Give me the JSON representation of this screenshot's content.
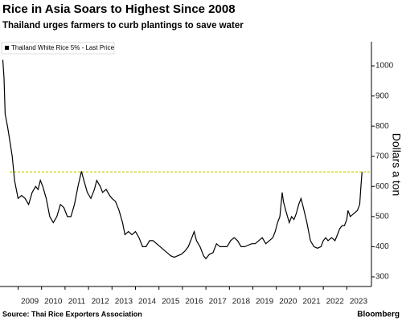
{
  "chart_data": {
    "type": "line",
    "title": "Rice in Asia Soars to Highest Since 2008",
    "subtitle": "Thailand urges farmers to curb plantings to save water",
    "y_label": "Dollars a ton",
    "source": "Source: Thai Rice Exporters Association",
    "brand": "Bloomberg",
    "legend_position": "upper left",
    "grid": false,
    "xlim": [
      2008.23,
      2024.05
    ],
    "xticks": [
      2009,
      2010,
      2011,
      2012,
      2013,
      2014,
      2015,
      2016,
      2017,
      2018,
      2019,
      2020,
      2021,
      2022,
      2023
    ],
    "ylim": [
      268,
      1080
    ],
    "yticks": [
      300,
      400,
      500,
      600,
      700,
      800,
      900,
      1000
    ],
    "reference_line": {
      "value": 648,
      "color": "#c8d400"
    },
    "x": [
      2008.35,
      2008.4,
      2008.45,
      2008.55,
      2008.65,
      2008.75,
      2008.85,
      2008.95,
      2009.0,
      2009.15,
      2009.3,
      2009.45,
      2009.6,
      2009.75,
      2009.85,
      2009.95,
      2010.05,
      2010.2,
      2010.35,
      2010.5,
      2010.65,
      2010.8,
      2010.95,
      2011.1,
      2011.25,
      2011.4,
      2011.55,
      2011.7,
      2011.8,
      2011.95,
      2012.1,
      2012.25,
      2012.35,
      2012.5,
      2012.6,
      2012.75,
      2012.9,
      2013.0,
      2013.15,
      2013.3,
      2013.45,
      2013.55,
      2013.7,
      2013.85,
      2014.0,
      2014.15,
      2014.3,
      2014.45,
      2014.6,
      2014.75,
      2014.9,
      2015.05,
      2015.2,
      2015.35,
      2015.5,
      2015.65,
      2015.8,
      2015.95,
      2016.1,
      2016.25,
      2016.4,
      2016.5,
      2016.6,
      2016.75,
      2016.9,
      2017.0,
      2017.15,
      2017.3,
      2017.45,
      2017.6,
      2017.75,
      2017.9,
      2018.05,
      2018.2,
      2018.35,
      2018.5,
      2018.65,
      2018.8,
      2018.95,
      2019.1,
      2019.25,
      2019.4,
      2019.55,
      2019.7,
      2019.85,
      2019.95,
      2020.05,
      2020.15,
      2020.25,
      2020.3,
      2020.4,
      2020.55,
      2020.65,
      2020.75,
      2020.85,
      2020.95,
      2021.05,
      2021.15,
      2021.3,
      2021.45,
      2021.6,
      2021.75,
      2021.9,
      2022.0,
      2022.1,
      2022.2,
      2022.35,
      2022.5,
      2022.6,
      2022.7,
      2022.8,
      2022.9,
      2023.0,
      2023.05,
      2023.15,
      2023.3,
      2023.45,
      2023.55,
      2023.6,
      2023.65
    ],
    "series": [
      {
        "name": "Thailand White Rice 5% - Last Price",
        "color": "#000000",
        "values": [
          1020,
          960,
          840,
          800,
          750,
          700,
          620,
          580,
          560,
          570,
          560,
          540,
          580,
          600,
          590,
          620,
          600,
          560,
          500,
          480,
          500,
          540,
          530,
          500,
          500,
          540,
          600,
          650,
          620,
          580,
          560,
          590,
          620,
          600,
          580,
          590,
          570,
          560,
          550,
          520,
          480,
          440,
          450,
          440,
          450,
          430,
          400,
          400,
          420,
          420,
          410,
          400,
          390,
          380,
          370,
          365,
          370,
          375,
          385,
          400,
          430,
          450,
          420,
          400,
          370,
          360,
          375,
          380,
          410,
          400,
          400,
          400,
          420,
          430,
          420,
          400,
          400,
          405,
          410,
          410,
          420,
          430,
          410,
          420,
          430,
          450,
          480,
          500,
          580,
          550,
          520,
          480,
          500,
          490,
          510,
          540,
          560,
          530,
          480,
          420,
          400,
          395,
          400,
          420,
          430,
          420,
          430,
          420,
          440,
          460,
          470,
          470,
          490,
          520,
          500,
          510,
          520,
          540,
          600,
          648
        ]
      }
    ]
  }
}
